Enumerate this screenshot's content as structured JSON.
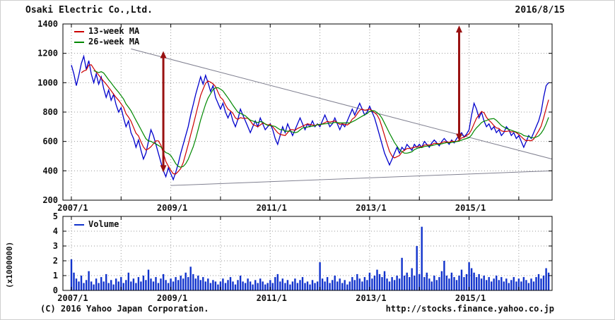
{
  "header": {
    "title": "Osaki Electric Co.,Ltd.",
    "date": "2016/8/15"
  },
  "footer": {
    "copyright": "(C) 2016 Yahoo Japan Corporation.",
    "url": "http://stocks.finance.yahoo.co.jp"
  },
  "colors": {
    "price": "#0000cc",
    "ma13": "#cc0000",
    "ma26": "#008800",
    "arrow": "#991111",
    "grid": "#9a9a9a",
    "trendline": "#808090",
    "volume": "#1133cc",
    "axis": "#000000"
  },
  "chart_data": [
    {
      "type": "line",
      "title": "Osaki Electric Co.,Ltd.",
      "xlabel": "",
      "ylabel": "",
      "x_start": 2007.0,
      "x_step": 0.05,
      "xlim": [
        2006.83,
        2016.67
      ],
      "ylim": [
        200,
        1400
      ],
      "yticks": [
        200,
        400,
        600,
        800,
        1000,
        1200,
        1400
      ],
      "xgrid": [
        2007,
        2008,
        2009,
        2010,
        2011,
        2012,
        2013,
        2014,
        2015,
        2016
      ],
      "xticks": [
        {
          "x": 2007,
          "label": "2007/1"
        },
        {
          "x": 2009,
          "label": "2009/1"
        },
        {
          "x": 2011,
          "label": "2011/1"
        },
        {
          "x": 2013,
          "label": "2013/1"
        },
        {
          "x": 2015,
          "label": "2015/1"
        }
      ],
      "legend": [
        {
          "label": "13-week MA",
          "color": "#cc0000"
        },
        {
          "label": "26-week MA",
          "color": "#008800"
        }
      ],
      "series": [
        {
          "name": "Price",
          "color": "#0000cc",
          "values": [
            1120,
            1060,
            980,
            1050,
            1130,
            1180,
            1090,
            1150,
            1060,
            1000,
            1060,
            990,
            1040,
            960,
            900,
            950,
            880,
            920,
            850,
            800,
            830,
            760,
            700,
            740,
            660,
            620,
            560,
            610,
            540,
            480,
            520,
            600,
            680,
            640,
            580,
            520,
            460,
            400,
            360,
            420,
            380,
            340,
            390,
            450,
            520,
            580,
            640,
            700,
            780,
            850,
            920,
            980,
            1040,
            990,
            1050,
            1000,
            940,
            980,
            900,
            860,
            820,
            860,
            800,
            760,
            800,
            740,
            700,
            750,
            820,
            780,
            740,
            700,
            660,
            700,
            740,
            700,
            760,
            720,
            680,
            700,
            720,
            680,
            620,
            580,
            640,
            700,
            660,
            720,
            680,
            640,
            680,
            720,
            760,
            720,
            680,
            720,
            700,
            740,
            700,
            720,
            700,
            740,
            780,
            740,
            700,
            720,
            760,
            720,
            680,
            720,
            700,
            740,
            780,
            820,
            780,
            820,
            860,
            820,
            780,
            800,
            840,
            800,
            760,
            700,
            640,
            580,
            520,
            480,
            440,
            480,
            520,
            560,
            520,
            560,
            540,
            580,
            560,
            540,
            580,
            560,
            580,
            560,
            600,
            580,
            560,
            590,
            610,
            590,
            570,
            600,
            620,
            600,
            580,
            610,
            590,
            620,
            640,
            660,
            630,
            650,
            680,
            780,
            860,
            820,
            760,
            800,
            740,
            700,
            720,
            680,
            700,
            660,
            680,
            640,
            660,
            700,
            680,
            640,
            660,
            620,
            640,
            600,
            560,
            600,
            640,
            620,
            660,
            700,
            740,
            800,
            900,
            980,
            1000
          ]
        },
        {
          "name": "13-week MA",
          "color": "#cc0000",
          "type": "moving_average",
          "derived_from": "Price",
          "window_weeks": 13
        },
        {
          "name": "26-week MA",
          "color": "#008800",
          "type": "moving_average",
          "derived_from": "Price",
          "window_weeks": 26
        }
      ],
      "trendlines": [
        {
          "name": "descending-resistance",
          "from": [
            2008.2,
            1230
          ],
          "to": [
            2016.67,
            480
          ],
          "color": "#808090"
        },
        {
          "name": "ascending-support",
          "from": [
            2009.0,
            300
          ],
          "to": [
            2016.67,
            400
          ],
          "color": "#808090"
        }
      ],
      "arrows": [
        {
          "name": "measured-move-2008",
          "x": 2008.85,
          "y_from": 390,
          "y_to": 1215
        },
        {
          "name": "measured-move-2014",
          "x": 2014.8,
          "y_from": 605,
          "y_to": 1390
        }
      ],
      "arrow_color": "#991111",
      "grid": "dotted",
      "legend_position": "top-left"
    },
    {
      "type": "bar",
      "name": "Volume",
      "legend_label": "Volume",
      "y_axis_label": "(x1000000)",
      "ylim": [
        0,
        5
      ],
      "yticks": [
        0,
        1,
        2,
        3,
        4,
        5
      ],
      "color": "#1133cc",
      "values": [
        2.1,
        1.2,
        0.8,
        0.6,
        1.0,
        0.5,
        0.7,
        1.3,
        0.6,
        0.4,
        0.8,
        0.5,
        0.9,
        0.6,
        1.1,
        0.5,
        0.7,
        0.4,
        0.8,
        0.6,
        0.9,
        0.5,
        0.7,
        1.2,
        0.6,
        0.8,
        0.5,
        0.9,
        0.6,
        1.0,
        0.7,
        1.4,
        0.8,
        0.6,
        0.9,
        0.5,
        0.8,
        1.1,
        0.7,
        0.5,
        0.8,
        0.6,
        0.9,
        0.7,
        1.0,
        0.8,
        1.2,
        0.9,
        1.6,
        1.1,
        0.8,
        1.0,
        0.7,
        0.9,
        0.6,
        0.8,
        0.5,
        0.7,
        0.6,
        0.4,
        0.6,
        0.8,
        0.5,
        0.7,
        0.9,
        0.6,
        0.4,
        0.7,
        1.0,
        0.6,
        0.5,
        0.8,
        0.6,
        0.4,
        0.7,
        0.5,
        0.8,
        0.6,
        0.4,
        0.5,
        0.7,
        0.5,
        0.9,
        1.1,
        0.6,
        0.8,
        0.5,
        0.7,
        0.4,
        0.6,
        0.8,
        0.5,
        0.7,
        0.9,
        0.5,
        0.6,
        0.4,
        0.7,
        0.5,
        0.6,
        1.9,
        0.8,
        0.6,
        0.9,
        0.5,
        0.7,
        1.0,
        0.6,
        0.8,
        0.5,
        0.7,
        0.4,
        0.6,
        0.9,
        0.7,
        1.1,
        0.8,
        0.6,
        0.9,
        0.7,
        1.2,
        0.8,
        1.0,
        1.4,
        1.1,
        0.9,
        1.3,
        0.8,
        0.6,
        0.9,
        0.7,
        1.0,
        0.8,
        2.2,
        1.0,
        1.2,
        0.9,
        1.5,
        1.0,
        3.0,
        1.1,
        4.3,
        0.9,
        1.2,
        0.8,
        0.6,
        1.0,
        0.7,
        0.9,
        1.3,
        2.0,
        1.0,
        0.8,
        1.2,
        0.9,
        0.7,
        1.0,
        1.4,
        0.9,
        1.1,
        1.9,
        1.5,
        1.2,
        0.9,
        1.1,
        0.8,
        1.0,
        0.7,
        0.9,
        0.6,
        0.8,
        1.0,
        0.7,
        0.9,
        0.6,
        0.8,
        0.5,
        0.7,
        0.9,
        0.6,
        0.8,
        0.6,
        0.9,
        0.7,
        0.5,
        0.8,
        0.6,
        0.9,
        1.1,
        0.8,
        1.0,
        1.5,
        1.2
      ]
    }
  ]
}
